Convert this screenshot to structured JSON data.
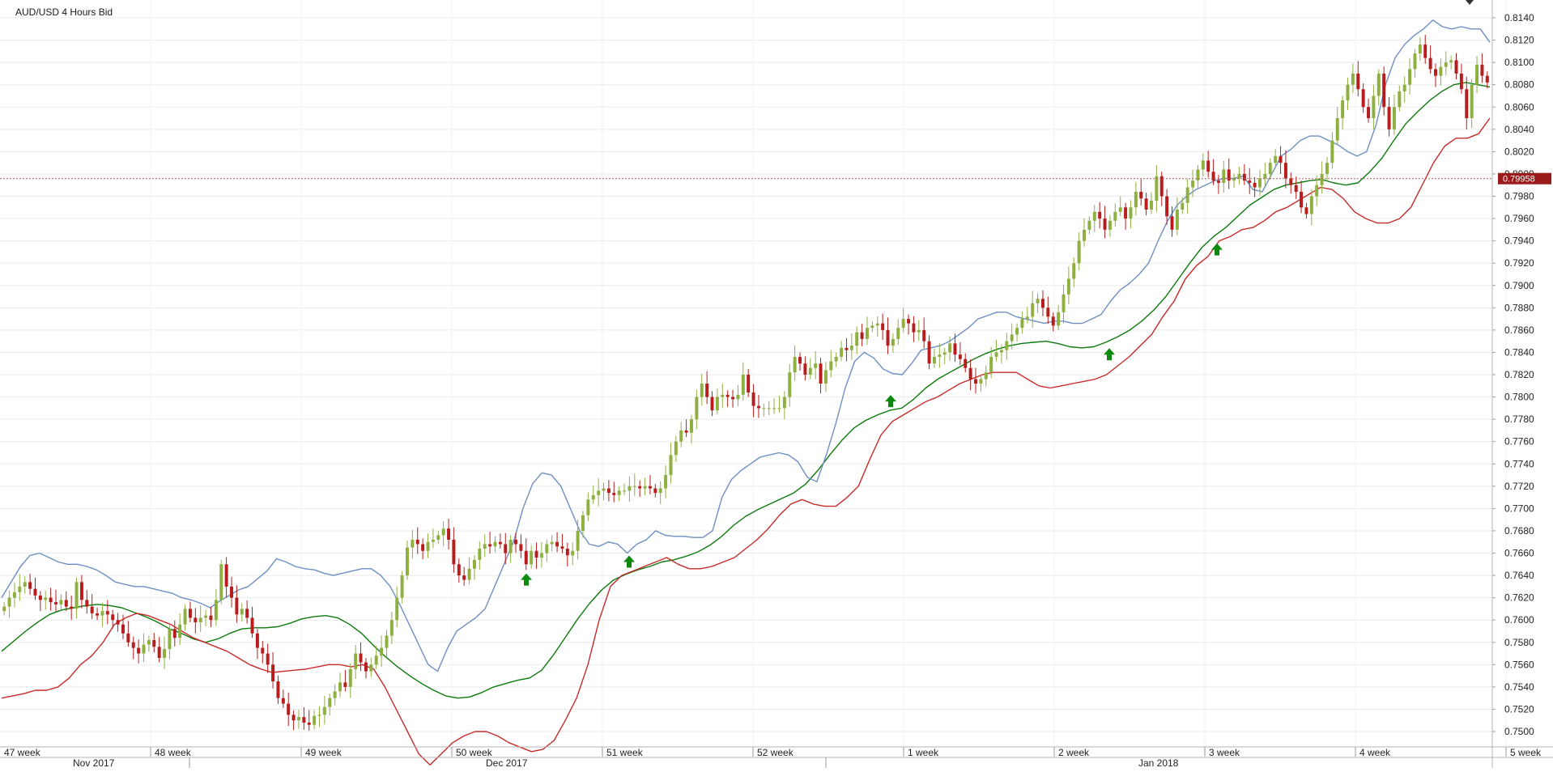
{
  "chart_data": {
    "type": "candlestick",
    "title": "AUD/USD  4 Hours Bid",
    "ylim": [
      0.7485,
      0.8145
    ],
    "yticks": [
      "0.8140",
      "0.8120",
      "0.8100",
      "0.8080",
      "0.8060",
      "0.8040",
      "0.8020",
      "0.8000",
      "0.7980",
      "0.7960",
      "0.7940",
      "0.7920",
      "0.7900",
      "0.7880",
      "0.7860",
      "0.7840",
      "0.7820",
      "0.7800",
      "0.7780",
      "0.7760",
      "0.7740",
      "0.7720",
      "0.7700",
      "0.7680",
      "0.7660",
      "0.7640",
      "0.7620",
      "0.7600",
      "0.7580",
      "0.7560",
      "0.7540",
      "0.7520",
      "0.7500"
    ],
    "week_labels": [
      "47 week",
      "48 week",
      "49 week",
      "50 week",
      "51 week",
      "52 week",
      "1 week",
      "2 week",
      "3 week",
      "4 week",
      "5 week"
    ],
    "month_labels": [
      "Nov 2017",
      "Dec 2017",
      "Jan 2018"
    ],
    "current_price": "0.79958",
    "grid": true,
    "series": [
      {
        "name": "close",
        "values": [
          0.7612,
          0.762,
          0.7625,
          0.763,
          0.7634,
          0.7628,
          0.7622,
          0.7618,
          0.762,
          0.7616,
          0.7614,
          0.7618,
          0.7612,
          0.761,
          0.7634,
          0.7618,
          0.7612,
          0.7606,
          0.7604,
          0.7608,
          0.7605,
          0.76,
          0.7596,
          0.7588,
          0.758,
          0.7575,
          0.757,
          0.7578,
          0.7582,
          0.7576,
          0.7566,
          0.7574,
          0.7592,
          0.7584,
          0.7596,
          0.761,
          0.7602,
          0.7598,
          0.7602,
          0.7604,
          0.76,
          0.7618,
          0.765,
          0.763,
          0.762,
          0.7605,
          0.761,
          0.7602,
          0.7588,
          0.7575,
          0.757,
          0.756,
          0.7545,
          0.753,
          0.7525,
          0.7515,
          0.751,
          0.7513,
          0.7508,
          0.7506,
          0.7514,
          0.7515,
          0.7522,
          0.753,
          0.7536,
          0.7544,
          0.754,
          0.7556,
          0.757,
          0.7562,
          0.7554,
          0.756,
          0.7568,
          0.7575,
          0.7586,
          0.76,
          0.762,
          0.764,
          0.7665,
          0.7672,
          0.7668,
          0.7662,
          0.767,
          0.7672,
          0.7676,
          0.7682,
          0.7672,
          0.765,
          0.764,
          0.7636,
          0.7646,
          0.7654,
          0.7664,
          0.7668,
          0.7666,
          0.767,
          0.7668,
          0.766,
          0.7672,
          0.7668,
          0.7662,
          0.765,
          0.7662,
          0.7656,
          0.766,
          0.7668,
          0.767,
          0.7666,
          0.7664,
          0.7658,
          0.7662,
          0.768,
          0.7694,
          0.7708,
          0.7712,
          0.7716,
          0.7718,
          0.7714,
          0.7712,
          0.7716,
          0.7716,
          0.772,
          0.772,
          0.7718,
          0.772,
          0.7718,
          0.7714,
          0.7718,
          0.773,
          0.7748,
          0.776,
          0.777,
          0.7768,
          0.778,
          0.78,
          0.7812,
          0.78,
          0.7788,
          0.78,
          0.7802,
          0.78,
          0.7798,
          0.7802,
          0.782,
          0.7804,
          0.7792,
          0.779,
          0.779,
          0.779,
          0.779,
          0.779,
          0.78,
          0.7822,
          0.7836,
          0.783,
          0.782,
          0.7826,
          0.783,
          0.7812,
          0.7824,
          0.7832,
          0.7836,
          0.7844,
          0.7842,
          0.7846,
          0.7858,
          0.7852,
          0.7862,
          0.7864,
          0.7866,
          0.786,
          0.7846,
          0.7852,
          0.7862,
          0.787,
          0.7866,
          0.7858,
          0.786,
          0.785,
          0.783,
          0.7836,
          0.7838,
          0.784,
          0.7848,
          0.7838,
          0.7834,
          0.7826,
          0.7816,
          0.7812,
          0.7816,
          0.7822,
          0.7836,
          0.784,
          0.7842,
          0.785,
          0.7856,
          0.7862,
          0.787,
          0.7872,
          0.7884,
          0.7888,
          0.788,
          0.7872,
          0.7864,
          0.7876,
          0.7892,
          0.7906,
          0.792,
          0.794,
          0.795,
          0.7958,
          0.7966,
          0.796,
          0.795,
          0.7958,
          0.7966,
          0.797,
          0.796,
          0.797,
          0.7984,
          0.7978,
          0.7968,
          0.7976,
          0.7998,
          0.798,
          0.7962,
          0.795,
          0.7968,
          0.7974,
          0.7988,
          0.7994,
          0.8004,
          0.8012,
          0.8002,
          0.7994,
          0.7992,
          0.8004,
          0.7994,
          0.7996,
          0.8,
          0.7994,
          0.7992,
          0.7988,
          0.7996,
          0.8,
          0.801,
          0.8016,
          0.801,
          0.7996,
          0.799,
          0.7984,
          0.797,
          0.7964,
          0.798,
          0.799,
          0.8,
          0.801,
          0.803,
          0.805,
          0.8066,
          0.808,
          0.809,
          0.8076,
          0.806,
          0.805,
          0.807,
          0.809,
          0.806,
          0.804,
          0.806,
          0.8074,
          0.808,
          0.8094,
          0.8108,
          0.8116,
          0.8104,
          0.8094,
          0.8088,
          0.8096,
          0.81,
          0.8102,
          0.809,
          0.8076,
          0.805,
          0.808,
          0.8098,
          0.8088,
          0.8082
        ]
      },
      {
        "name": "ma",
        "values": [
          0.7572,
          0.7581,
          0.759,
          0.7598,
          0.7605,
          0.7609,
          0.7611,
          0.7613,
          0.7614,
          0.7613,
          0.7611,
          0.7607,
          0.7603,
          0.7598,
          0.7592,
          0.7588,
          0.7583,
          0.758,
          0.7583,
          0.7588,
          0.7592,
          0.7593,
          0.7593,
          0.7594,
          0.7597,
          0.7601,
          0.7603,
          0.7604,
          0.7602,
          0.7596,
          0.7588,
          0.7577,
          0.7567,
          0.7558,
          0.755,
          0.7543,
          0.7537,
          0.7532,
          0.753,
          0.7531,
          0.7535,
          0.754,
          0.7543,
          0.7546,
          0.7548,
          0.7555,
          0.7569,
          0.7585,
          0.7601,
          0.7615,
          0.7627,
          0.7636,
          0.7641,
          0.7645,
          0.7648,
          0.7652,
          0.7654,
          0.7657,
          0.7661,
          0.7667,
          0.7675,
          0.7685,
          0.7693,
          0.7699,
          0.7704,
          0.7709,
          0.7714,
          0.7722,
          0.7734,
          0.7748,
          0.7761,
          0.7772,
          0.7779,
          0.7784,
          0.7788,
          0.779,
          0.7798,
          0.7808,
          0.7816,
          0.7822,
          0.7828,
          0.7834,
          0.7839,
          0.7843,
          0.7846,
          0.7848,
          0.7849,
          0.785,
          0.7848,
          0.7845,
          0.7844,
          0.7845,
          0.7849,
          0.7854,
          0.786,
          0.7868,
          0.7878,
          0.789,
          0.7905,
          0.792,
          0.7934,
          0.7944,
          0.7952,
          0.7962,
          0.7972,
          0.7979,
          0.7986,
          0.799,
          0.7992,
          0.7994,
          0.7995,
          0.7992,
          0.799,
          0.7992,
          0.8002,
          0.8014,
          0.803,
          0.8045,
          0.8056,
          0.8066,
          0.8074,
          0.808,
          0.8082,
          0.808,
          0.8078
        ]
      },
      {
        "name": "upper_band",
        "values": [
          0.762,
          0.7634,
          0.7648,
          0.7658,
          0.766,
          0.7656,
          0.7652,
          0.765,
          0.765,
          0.7648,
          0.7645,
          0.764,
          0.7634,
          0.7632,
          0.763,
          0.763,
          0.7628,
          0.7626,
          0.7624,
          0.762,
          0.7618,
          0.7615,
          0.7611,
          0.7617,
          0.7622,
          0.7627,
          0.763,
          0.7637,
          0.7644,
          0.7655,
          0.7652,
          0.7648,
          0.7646,
          0.7645,
          0.7642,
          0.764,
          0.7642,
          0.7644,
          0.7646,
          0.7646,
          0.764,
          0.763,
          0.7614,
          0.7596,
          0.7578,
          0.756,
          0.7554,
          0.7574,
          0.759,
          0.7596,
          0.7602,
          0.761,
          0.763,
          0.765,
          0.767,
          0.77,
          0.7722,
          0.7732,
          0.773,
          0.772,
          0.77,
          0.768,
          0.7668,
          0.7666,
          0.767,
          0.7668,
          0.766,
          0.7668,
          0.7672,
          0.768,
          0.7676,
          0.7675,
          0.7675,
          0.7674,
          0.7674,
          0.768,
          0.771,
          0.7726,
          0.7734,
          0.774,
          0.7746,
          0.7748,
          0.775,
          0.7748,
          0.7742,
          0.7728,
          0.7724,
          0.7748,
          0.7776,
          0.7808,
          0.7832,
          0.784,
          0.7835,
          0.7825,
          0.7821,
          0.782,
          0.783,
          0.7842,
          0.7844,
          0.7846,
          0.785,
          0.7856,
          0.7862,
          0.787,
          0.7873,
          0.7876,
          0.7876,
          0.7872,
          0.787,
          0.7868,
          0.7866,
          0.7868,
          0.7868,
          0.7866,
          0.7866,
          0.787,
          0.7874,
          0.7886,
          0.7896,
          0.7902,
          0.791,
          0.792,
          0.794,
          0.7958,
          0.7972,
          0.798,
          0.7986,
          0.799,
          0.7994,
          0.7996,
          0.7996,
          0.7998,
          0.7986,
          0.7984,
          0.8,
          0.8016,
          0.8022,
          0.803,
          0.8034,
          0.8034,
          0.803,
          0.8026,
          0.802,
          0.8016,
          0.802,
          0.8044,
          0.808,
          0.8104,
          0.8116,
          0.8124,
          0.813,
          0.8138,
          0.8132,
          0.813,
          0.8132,
          0.813,
          0.813,
          0.8118
        ]
      },
      {
        "name": "lower_band",
        "values": [
          0.753,
          0.7532,
          0.7534,
          0.7537,
          0.7537,
          0.754,
          0.7548,
          0.756,
          0.7568,
          0.758,
          0.7596,
          0.7602,
          0.7606,
          0.7604,
          0.76,
          0.7596,
          0.759,
          0.7584,
          0.758,
          0.7576,
          0.7572,
          0.7566,
          0.756,
          0.7556,
          0.7553,
          0.7554,
          0.7555,
          0.7556,
          0.7558,
          0.756,
          0.756,
          0.7558,
          0.756,
          0.7556,
          0.754,
          0.752,
          0.75,
          0.748,
          0.747,
          0.748,
          0.749,
          0.7496,
          0.75,
          0.75,
          0.7496,
          0.749,
          0.7486,
          0.7482,
          0.7484,
          0.7492,
          0.751,
          0.753,
          0.756,
          0.76,
          0.763,
          0.764,
          0.7644,
          0.7648,
          0.7652,
          0.7656,
          0.765,
          0.7646,
          0.7646,
          0.7648,
          0.7652,
          0.7656,
          0.7664,
          0.7672,
          0.7682,
          0.7694,
          0.7704,
          0.7708,
          0.7704,
          0.7702,
          0.7702,
          0.771,
          0.772,
          0.7744,
          0.7766,
          0.7778,
          0.7784,
          0.779,
          0.7796,
          0.78,
          0.7806,
          0.7812,
          0.7816,
          0.782,
          0.7822,
          0.7822,
          0.7822,
          0.7816,
          0.781,
          0.7808,
          0.781,
          0.7812,
          0.7814,
          0.7816,
          0.782,
          0.7828,
          0.7836,
          0.7846,
          0.7856,
          0.7872,
          0.7886,
          0.7906,
          0.7918,
          0.7926,
          0.794,
          0.7944,
          0.795,
          0.7952,
          0.7958,
          0.7966,
          0.797,
          0.7976,
          0.7982,
          0.7988,
          0.7986,
          0.7978,
          0.7966,
          0.796,
          0.7956,
          0.7956,
          0.796,
          0.797,
          0.799,
          0.801,
          0.8025,
          0.8032,
          0.8032,
          0.8036,
          0.805
        ]
      }
    ],
    "signals": [
      {
        "type": "buy",
        "price": 0.7636
      },
      {
        "type": "buy",
        "price": 0.7652
      },
      {
        "type": "buy",
        "price": 0.7796
      },
      {
        "type": "buy",
        "price": 0.7838
      },
      {
        "type": "buy",
        "price": 0.7932
      }
    ],
    "colors": {
      "up": "#8eb040",
      "down": "#b81d1d",
      "ma": "#0d7a0d",
      "upper_band": "#6e8fc4",
      "lower_band": "#c72a2a",
      "signal": "#0d8a0d",
      "price_tag": "#9b1b1b"
    }
  }
}
